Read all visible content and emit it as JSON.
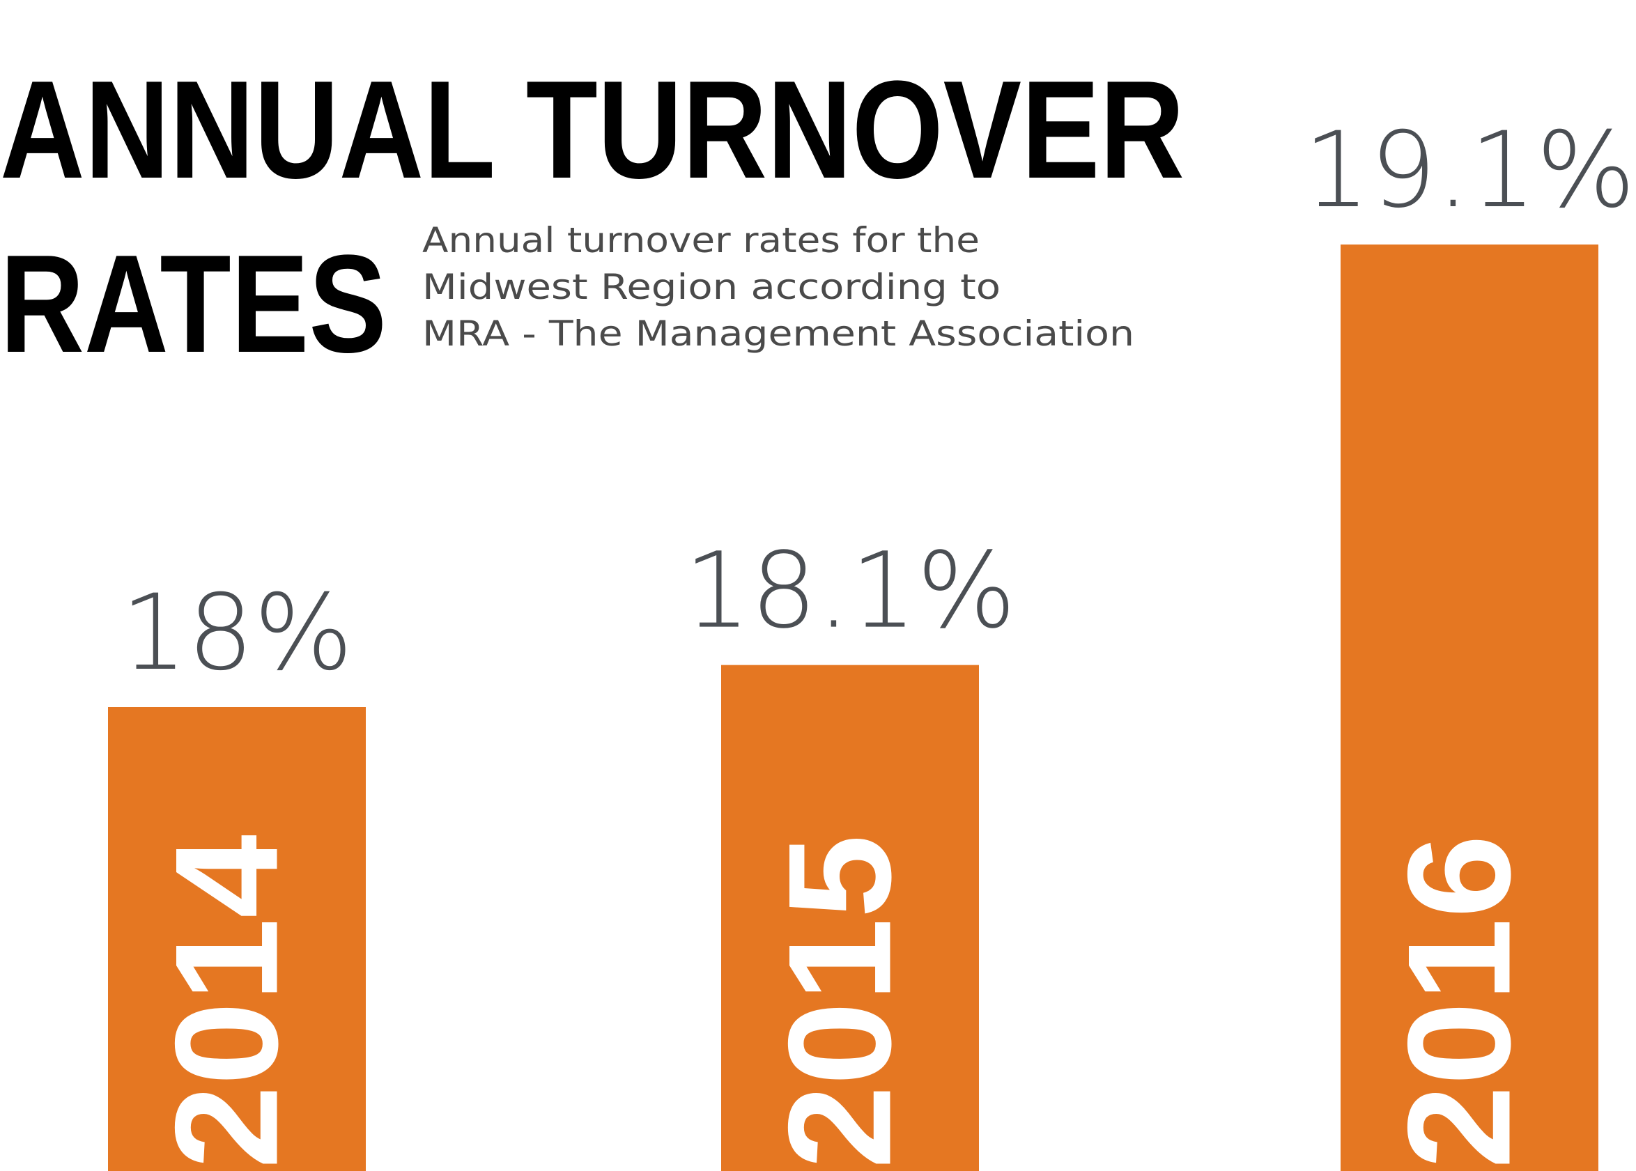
{
  "chart_data": {
    "type": "bar",
    "title_lines": [
      "ANNUAL TURNOVER",
      "RATES"
    ],
    "subtitle_lines": [
      "Annual turnover rates for the",
      "Midwest Region according to",
      "MRA - The Management Association"
    ],
    "categories": [
      "2014",
      "2015",
      "2016"
    ],
    "values": [
      18,
      18.1,
      19.1
    ],
    "value_labels": [
      "18%",
      "18.1%",
      "19.1%"
    ],
    "unit": "%",
    "bar_color": "#e57722",
    "label_color": "#4b4f54",
    "title_color": "#000000",
    "category_label_color": "#ffffff",
    "category_label_orientation": "vertical",
    "legend": "none",
    "grid": false,
    "axes_visible": false
  }
}
